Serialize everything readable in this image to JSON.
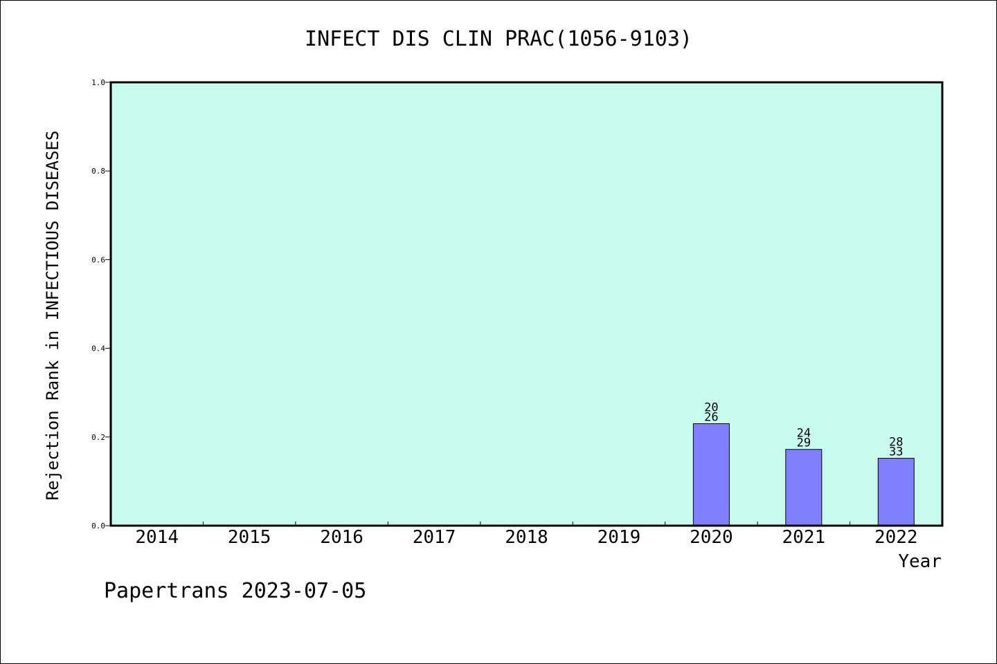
{
  "chart_data": {
    "type": "bar",
    "title": "INFECT DIS CLIN PRAC(1056-9103)",
    "xlabel": "Year",
    "ylabel": "Rejection Rank in INFECTIOUS DISEASES",
    "categories": [
      "2014",
      "2015",
      "2016",
      "2017",
      "2018",
      "2019",
      "2020",
      "2021",
      "2022"
    ],
    "values": [
      null,
      null,
      null,
      null,
      null,
      null,
      0.23,
      0.172,
      0.152
    ],
    "label_top": [
      "",
      "",
      "",
      "",
      "",
      "",
      "20",
      "24",
      "28"
    ],
    "label_bottom": [
      "",
      "",
      "",
      "",
      "",
      "",
      "26",
      "29",
      "33"
    ],
    "ylim": [
      0,
      1.0
    ],
    "yticks": [
      "0.0",
      "0.2",
      "0.4",
      "0.6",
      "0.8",
      "1.0"
    ],
    "ytick_values": [
      0,
      0.2,
      0.4,
      0.6,
      0.8,
      1.0
    ],
    "grid": false,
    "legend": "none",
    "colors": {
      "plot_background": "#c8fcee",
      "bar_fill": "#8080ff",
      "bar_stroke": "#000000"
    }
  },
  "footer": {
    "credit": "Papertrans 2023-07-05"
  }
}
